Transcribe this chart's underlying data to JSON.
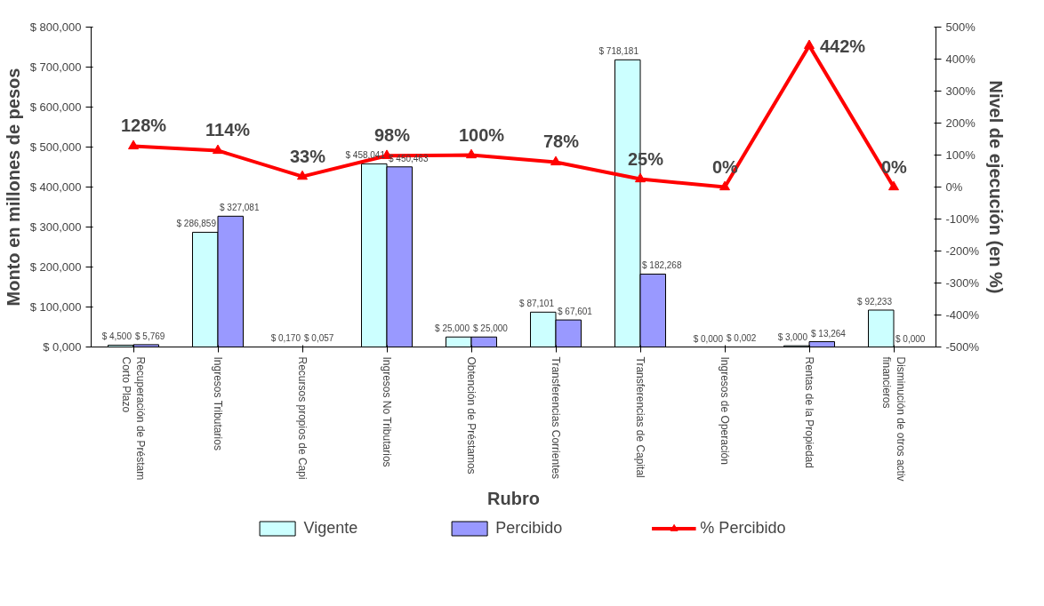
{
  "chart_data": {
    "type": "bar",
    "xlabel": "Rubro",
    "ylabel": "Monto en millones de pesos",
    "y2label": "Nivel de ejecución (en %)",
    "categories": [
      "Recuperación de Préstam\nCorto Plazo",
      "Ingresos Tributarios",
      "Recursos propios de Capi",
      "Ingresos No Tributarios",
      "Obtención de Préstamos",
      "Transferencias Corrientes",
      "Transferencias de Capital",
      "Ingresos de Operación",
      "Rentas de la Propiedad",
      "Disminución de otros activ\nfinancieros"
    ],
    "series": [
      {
        "name": "Vigente",
        "color": "#ccffff",
        "values": [
          4.5,
          286.859,
          0.17,
          458.041,
          25,
          87.101,
          718.181,
          0,
          3,
          92.233
        ],
        "value_labels": [
          "$ 4,500",
          "$ 286,859",
          "$ 0,170",
          "$ 458,041",
          "$ 25,000",
          "$ 87,101",
          "$ 718,181",
          "$ 0,000",
          "$ 3,000",
          "$ 92,233"
        ]
      },
      {
        "name": "Percibido",
        "color": "#9999ff",
        "values": [
          5.769,
          327.081,
          0.057,
          450.463,
          25,
          67.601,
          182.268,
          0.002,
          13.264,
          0
        ],
        "value_labels": [
          "$ 5,769",
          "$ 327,081",
          "$ 0,057",
          "$ 450,463",
          "$ 25,000",
          "$ 67,601",
          "$ 182,268",
          "$ 0,002",
          "$ 13,264",
          "$ 0,000"
        ]
      },
      {
        "name": "% Percibido",
        "type": "line",
        "axis": "y2",
        "color": "#ff0000",
        "marker": "triangle",
        "values": [
          128,
          114,
          33,
          98,
          100,
          78,
          25,
          0,
          442,
          0
        ],
        "value_labels": [
          "128%",
          "114%",
          "33%",
          "98%",
          "100%",
          "78%",
          "25%",
          "0%",
          "442%",
          "0%"
        ]
      }
    ],
    "ylim": [
      0,
      800
    ],
    "yticks": [
      {
        "value": 0,
        "label": "$ 0,000"
      },
      {
        "value": 100,
        "label": "$ 100,000"
      },
      {
        "value": 200,
        "label": "$ 200,000"
      },
      {
        "value": 300,
        "label": "$ 300,000"
      },
      {
        "value": 400,
        "label": "$ 400,000"
      },
      {
        "value": 500,
        "label": "$ 500,000"
      },
      {
        "value": 600,
        "label": "$ 600,000"
      },
      {
        "value": 700,
        "label": "$ 700,000"
      },
      {
        "value": 800,
        "label": "$ 800,000"
      }
    ],
    "y2lim": [
      -500,
      500
    ],
    "y2ticks": [
      {
        "value": -500,
        "label": "-500%"
      },
      {
        "value": -400,
        "label": "-400%"
      },
      {
        "value": -300,
        "label": "-300%"
      },
      {
        "value": -200,
        "label": "-200%"
      },
      {
        "value": -100,
        "label": "-100%"
      },
      {
        "value": 0,
        "label": "0%"
      },
      {
        "value": 100,
        "label": "100%"
      },
      {
        "value": 200,
        "label": "200%"
      },
      {
        "value": 300,
        "label": "300%"
      },
      {
        "value": 400,
        "label": "400%"
      },
      {
        "value": 500,
        "label": "500%"
      }
    ],
    "grid": false,
    "legend": "bottom"
  }
}
